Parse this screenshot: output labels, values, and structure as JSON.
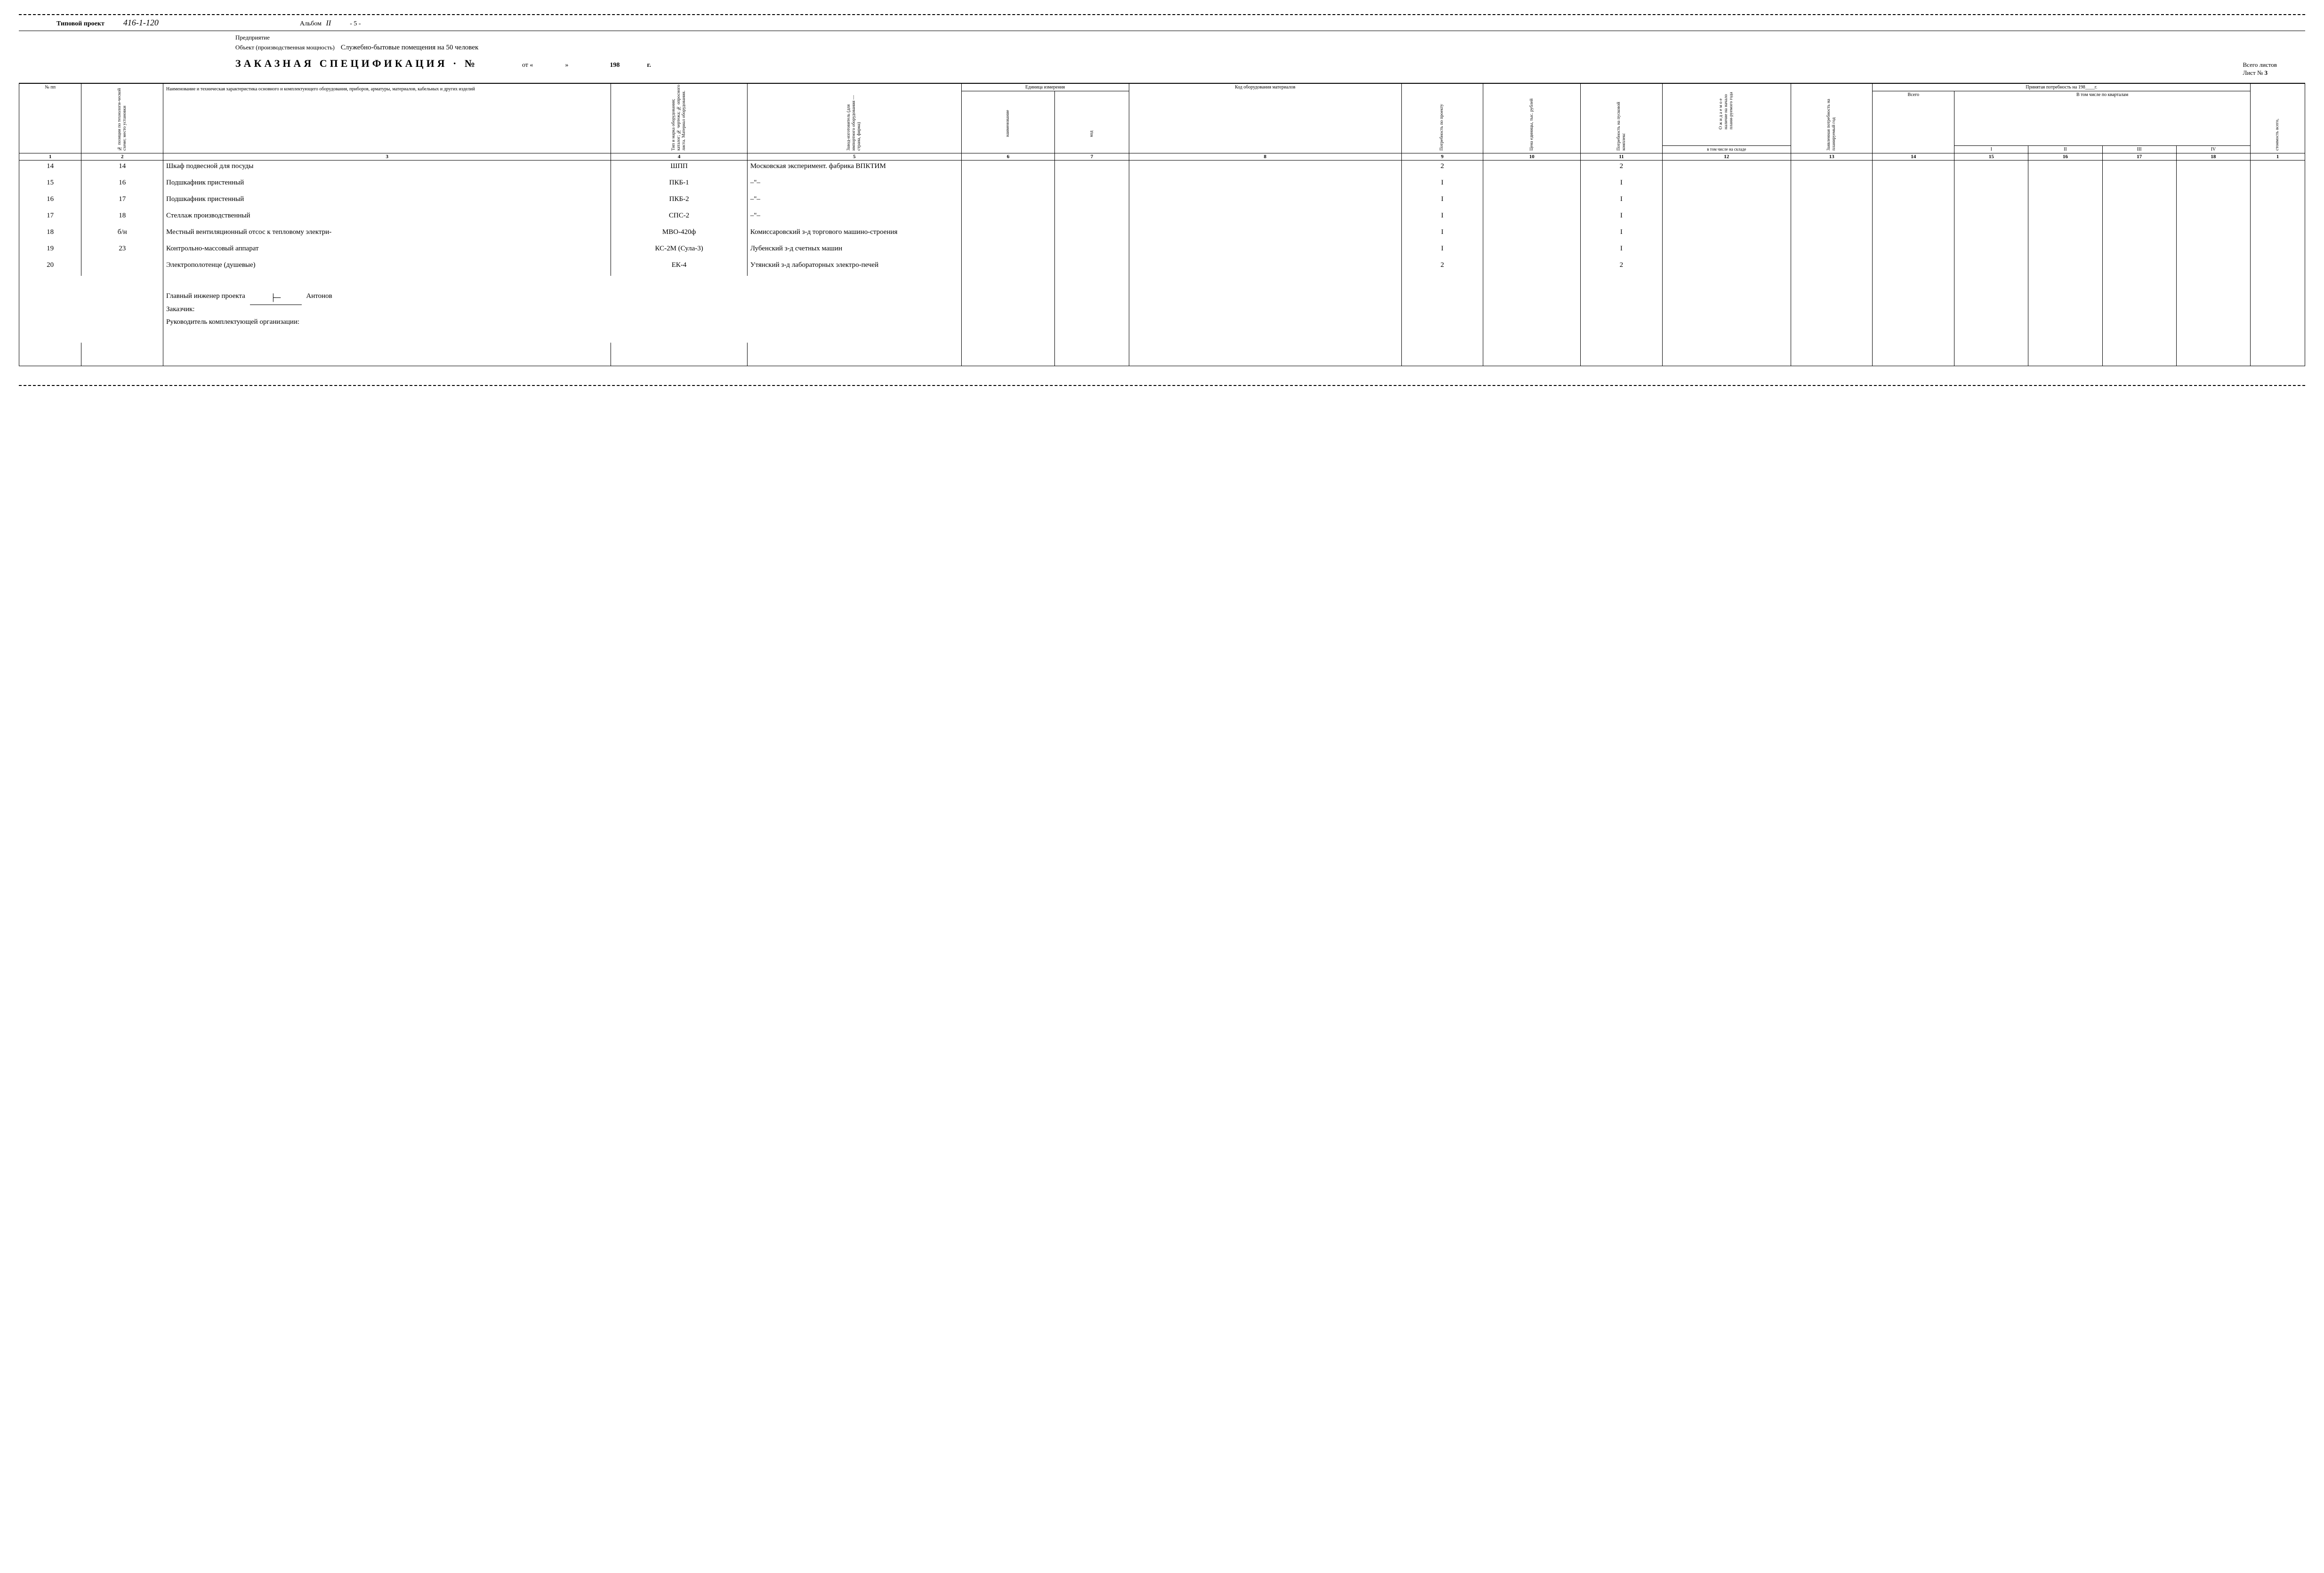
{
  "header": {
    "project_label": "Типовой проект",
    "project_value": "416-1-120",
    "album_label": "Альбом",
    "album_value": "II",
    "page": "- 5 -",
    "enterprise_label": "Предприятие",
    "object_label": "Объект (производственная мощность)",
    "object_value": "Служебно-бытовые помещения на 50 человек",
    "main_title": "ЗАКАЗНАЯ СПЕЦИФИКАЦИЯ · №",
    "from_label": "от «",
    "from_close": "»",
    "year_prefix": "198",
    "year_suffix": "г.",
    "total_sheets_label": "Всего листов",
    "sheet_label": "Лист №",
    "sheet_value": "3"
  },
  "columns_top": {
    "c1": "№ пп",
    "c2": "№ позиции по технологи-ческой схеме; место установки",
    "c3": "Наименование и техническая характеристика основного и комплектующего оборудования, приборов, арматуры, материалов, кабельных и других изделий",
    "c4": "Тип и марка оборудования; каталог; № чертежа; № опросного листа. Материал оборудования.",
    "c5": "Завод-изготовитель (для импортного оборудования — страна, фирма)",
    "c6g": "Единица измерения",
    "c6": "наименование",
    "c7": "код",
    "c8": "Код оборудования материалов",
    "c9": "Потребность по проекту",
    "c10": "Цена единицы, тыс. рублей",
    "c11": "Потребность на пусковой комплекс",
    "c12": "О ж и д а е м о е наличие на начало плани-руемого года",
    "c12b": "в том числе на складе",
    "c13": "Заявленная потребность на планируемый год",
    "c14g": "Принятая потребность на 198____г.",
    "c14": "Всего",
    "c14sub": "В том числе по кварталам",
    "q1": "I",
    "q2": "II",
    "q3": "III",
    "q4": "IV",
    "c19": "стоимость всего,"
  },
  "colnums": [
    "1",
    "2",
    "3",
    "4",
    "5",
    "6",
    "7",
    "8",
    "9",
    "10",
    "11",
    "12",
    "13",
    "14",
    "15",
    "16",
    "17",
    "18",
    "1"
  ],
  "rows": [
    {
      "n": "14",
      "pos": "14",
      "name": "Шкаф подвесной для посуды",
      "type": "ШПП",
      "maker": "Московская эксперимент. фабрика ВПКТИМ",
      "need": "2",
      "start": "2"
    },
    {
      "n": "15",
      "pos": "16",
      "name": "Подшкафник пристенный",
      "type": "ПКБ-1",
      "maker": "–\"–",
      "need": "I",
      "start": "I"
    },
    {
      "n": "16",
      "pos": "17",
      "name": "Подшкафник пристенный",
      "type": "ПКБ-2",
      "maker": "–\"–",
      "need": "I",
      "start": "I"
    },
    {
      "n": "17",
      "pos": "18",
      "name": "Стеллаж производственный",
      "type": "СПС-2",
      "maker": "–\"–",
      "need": "I",
      "start": "I"
    },
    {
      "n": "18",
      "pos": "б/н",
      "name": "Местный вентиляционный отсос к тепловому электри-",
      "type": "МВО-420ф",
      "maker": "Комиссаровский з-д торгового машино-строения",
      "need": "I",
      "start": "I"
    },
    {
      "n": "19",
      "pos": "23",
      "name": "Контрольно-массовый аппарат",
      "type": "КС-2М (Сула-3)",
      "maker": "Лубенский з-д счетных машин",
      "need": "I",
      "start": "I"
    },
    {
      "n": "20",
      "pos": "",
      "name": "Электрополотенце (душевые)",
      "type": "ЕК-4",
      "maker": "Утянский з-д лабораторных электро-печей",
      "need": "2",
      "start": "2"
    }
  ],
  "footer": {
    "line1_label": "Главный инженер проекта",
    "line1_sig": "подпись",
    "line1_name": "Антонов",
    "line2": "Заказчик:",
    "line3": "Руководитель комплектующей организации:"
  }
}
